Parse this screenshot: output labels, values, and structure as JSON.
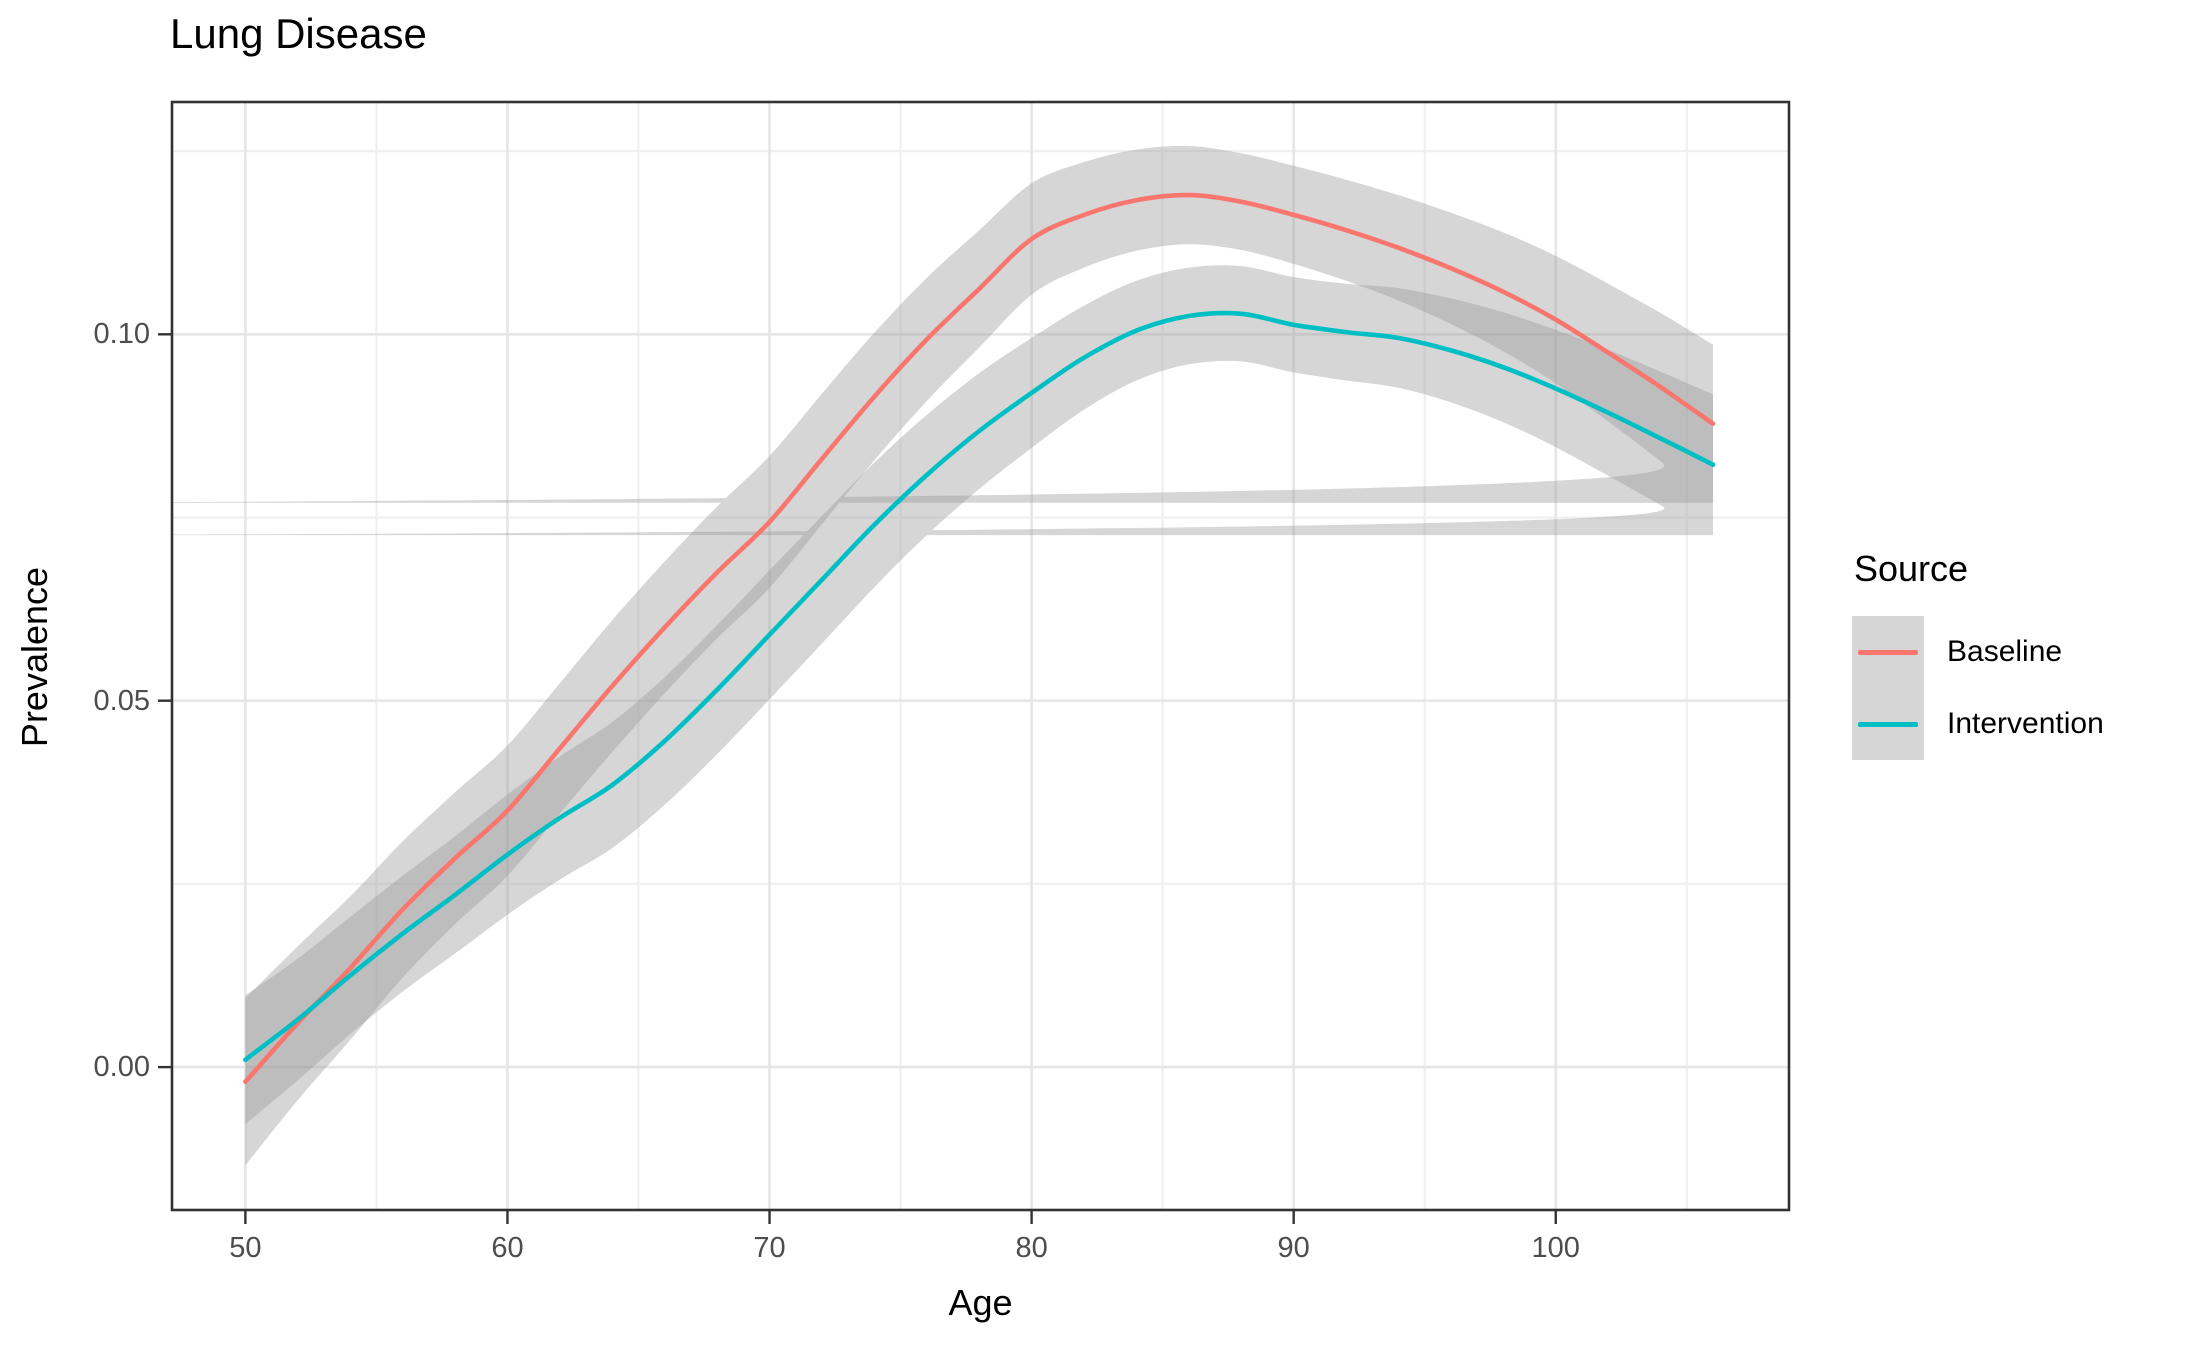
{
  "title": "Lung Disease",
  "axes": {
    "x": {
      "label": "Age",
      "tick_labels": [
        "50",
        "60",
        "70",
        "80",
        "90",
        "100"
      ],
      "tick_values": [
        50,
        60,
        70,
        80,
        90,
        100
      ],
      "minor_ticks": [
        55,
        65,
        75,
        85,
        95,
        105
      ]
    },
    "y": {
      "label": "Prevalence",
      "tick_labels": [
        "0.00",
        "0.05",
        "0.10"
      ],
      "tick_values": [
        0,
        0.05,
        0.1
      ],
      "minor_ticks": [
        0.025,
        0.075,
        0.125
      ]
    }
  },
  "legend": {
    "title": "Source",
    "entries": [
      {
        "label": "Baseline",
        "color": "#F8766D"
      },
      {
        "label": "Intervention",
        "color": "#00BFC4"
      }
    ]
  },
  "colors": {
    "baseline": "#F8766D",
    "intervention": "#00BFC4",
    "ribbon_fill": "#999999",
    "ribbon_opacity": 0.4,
    "grid_major": "#e6e6e6",
    "grid_minor": "#f0f0f0",
    "panel_border": "#333333",
    "tick_mark": "#333333",
    "tick_text": "#4d4d4d",
    "background": "#ffffff"
  },
  "chart_data": {
    "type": "line",
    "title": "Lung Disease",
    "xlabel": "Age",
    "ylabel": "Prevalence",
    "xlim": [
      47.2,
      108.9
    ],
    "ylim": [
      -0.0195,
      0.1317
    ],
    "grid": true,
    "legend_position": "right",
    "ribbon": {
      "fill": "#999999",
      "opacity": 0.4
    },
    "x": [
      50,
      52,
      54,
      56,
      58,
      60,
      62,
      64,
      66,
      68,
      70,
      72,
      74,
      76,
      78,
      80,
      82,
      84,
      86,
      88,
      90,
      92,
      94,
      96,
      98,
      100,
      102,
      104,
      106
    ],
    "series": [
      {
        "name": "Baseline",
        "color": "#F8766D",
        "values": [
          -0.002,
          0.006,
          0.0135,
          0.0215,
          0.0285,
          0.035,
          0.0435,
          0.052,
          0.06,
          0.0675,
          0.0744,
          0.083,
          0.0915,
          0.0993,
          0.1062,
          0.113,
          0.1163,
          0.1183,
          0.119,
          0.1181,
          0.1163,
          0.1142,
          0.1118,
          0.109,
          0.1058,
          0.102,
          0.0975,
          0.0928,
          0.0878
        ],
        "ci_half": [
          0.0114,
          0.0105,
          0.0098,
          0.0093,
          0.009,
          0.0089,
          0.0089,
          0.009,
          0.009,
          0.009,
          0.009,
          0.0089,
          0.0087,
          0.0084,
          0.008,
          0.0076,
          0.0072,
          0.0069,
          0.0067,
          0.0066,
          0.0067,
          0.0069,
          0.0072,
          0.0076,
          0.0081,
          0.0087,
          0.0094,
          0.0101,
          0.0108
        ]
      },
      {
        "name": "Intervention",
        "color": "#00BFC4",
        "values": [
          0.001,
          0.0065,
          0.0125,
          0.0182,
          0.0235,
          0.029,
          0.034,
          0.0385,
          0.0445,
          0.0515,
          0.059,
          0.0665,
          0.074,
          0.0808,
          0.0868,
          0.092,
          0.0968,
          0.1005,
          0.1025,
          0.1028,
          0.1013,
          0.1003,
          0.0995,
          0.0978,
          0.0955,
          0.0926,
          0.0893,
          0.0858,
          0.0822
        ],
        "ci_half": [
          0.0088,
          0.0083,
          0.008,
          0.0079,
          0.008,
          0.0082,
          0.0084,
          0.0086,
          0.0087,
          0.0088,
          0.0088,
          0.0087,
          0.0085,
          0.0082,
          0.0079,
          0.0075,
          0.0071,
          0.0068,
          0.0066,
          0.0065,
          0.0065,
          0.0066,
          0.0068,
          0.0071,
          0.0075,
          0.008,
          0.0086,
          0.0091,
          0.0096
        ]
      }
    ]
  }
}
